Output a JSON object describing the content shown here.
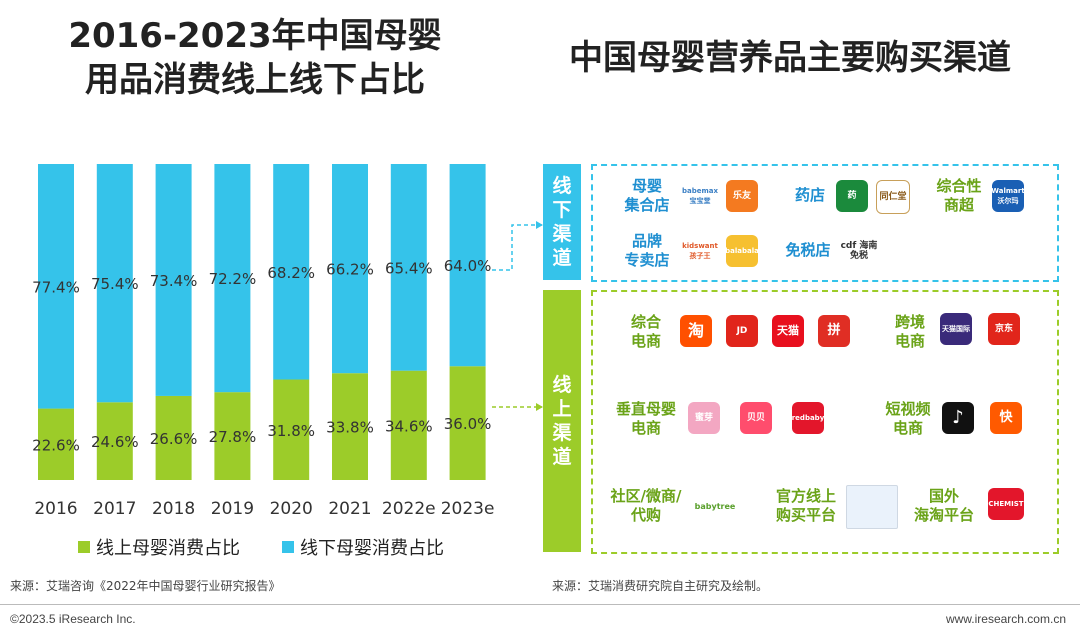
{
  "left_title_line1": "2016-2023年中国母婴",
  "left_title_line2": "用品消费线上线下占比",
  "right_title": "中国母婴营养品主要购买渠道",
  "colors": {
    "online": "#9ccc29",
    "offline": "#35c3ea",
    "offline_box": "#35c3ea",
    "online_box": "#9ccc29"
  },
  "chart_data": {
    "type": "bar",
    "stacked": true,
    "percent": true,
    "categories": [
      "2016",
      "2017",
      "2018",
      "2019",
      "2020",
      "2021",
      "2022e",
      "2023e"
    ],
    "series": [
      {
        "name": "线上母婴消费占比",
        "values": [
          22.6,
          24.6,
          26.6,
          27.8,
          31.8,
          33.8,
          34.6,
          36.0
        ],
        "labels": [
          "22.6%",
          "24.6%",
          "26.6%",
          "27.8%",
          "31.8%",
          "33.8%",
          "34.6%",
          "36.0%"
        ]
      },
      {
        "name": "线下母婴消费占比",
        "values": [
          77.4,
          75.4,
          73.4,
          72.2,
          68.2,
          66.2,
          65.4,
          64.0
        ],
        "labels": [
          "77.4%",
          "75.4%",
          "73.4%",
          "72.2%",
          "68.2%",
          "66.2%",
          "65.4%",
          "64.0%"
        ]
      }
    ],
    "ylim": [
      0,
      100
    ],
    "legend": "bottom"
  },
  "source_left": "来源：艾瑞咨询《2022年中国母婴行业研究报告》",
  "source_right": "来源：艾瑞消费研究院自主研究及绘制。",
  "footer_left": "©2023.5 iResearch Inc.",
  "footer_right": "www.iresearch.com.cn",
  "offline": {
    "label": [
      "线",
      "下",
      "渠",
      "道"
    ],
    "groups": [
      {
        "name": [
          "母婴",
          "集合店"
        ],
        "logos": [
          {
            "icon": "babemax-logo",
            "text": "babemax 宝宝堂",
            "color": "#ffffff"
          },
          {
            "icon": "leyou-logo",
            "text": "乐友",
            "color": "#f47a20"
          }
        ]
      },
      {
        "name": [
          "药店"
        ],
        "logos": [
          {
            "icon": "pharmacy-logo",
            "text": "药",
            "color": "#1b8a3c"
          },
          {
            "icon": "beijing-tongrentang-logo",
            "text": "同仁堂",
            "color": "#ffffff"
          }
        ]
      },
      {
        "name": [
          "综合性",
          "商超"
        ],
        "logos": [
          {
            "icon": "walmart-logo",
            "text": "Walmart 沃尔玛",
            "color": "#1a5fb4"
          }
        ]
      },
      {
        "name": [
          "品牌",
          "专卖店"
        ],
        "logos": [
          {
            "icon": "kidswant-logo",
            "text": "kidswant 孩子王",
            "color": "#ffffff"
          },
          {
            "icon": "balabala-logo",
            "text": "balabala",
            "color": "#f6c030"
          }
        ]
      },
      {
        "name": [
          "免税店"
        ],
        "logos": [
          {
            "icon": "cdf-logo",
            "text": "cdf 海南免税",
            "color": "#ffffff"
          }
        ]
      }
    ]
  },
  "online": {
    "label": [
      "线",
      "上",
      "渠",
      "道"
    ],
    "groups": [
      {
        "name": [
          "综合",
          "电商"
        ],
        "logos": [
          {
            "icon": "taobao-logo",
            "text": "淘",
            "color": "#ff5000"
          },
          {
            "icon": "jd-logo",
            "text": "JD",
            "color": "#e1251b"
          },
          {
            "icon": "tmall-logo",
            "text": "天猫",
            "color": "#e8101e"
          },
          {
            "icon": "pinduoduo-logo",
            "text": "拼",
            "color": "#e02e24"
          }
        ]
      },
      {
        "name": [
          "跨境",
          "电商"
        ],
        "logos": [
          {
            "icon": "tmall-global-logo",
            "text": "天猫国际",
            "color": "#3a2a7a"
          },
          {
            "icon": "jd-global-logo",
            "text": "京东",
            "color": "#e1251b"
          }
        ]
      },
      {
        "name": [
          "垂直母婴",
          "电商"
        ],
        "logos": [
          {
            "icon": "miya-logo",
            "text": "蜜芽",
            "color": "#f3a7c2"
          },
          {
            "icon": "beibei-logo",
            "text": "贝贝",
            "color": "#ff4d6d"
          },
          {
            "icon": "redbaby-logo",
            "text": "redbaby",
            "color": "#e3162b"
          }
        ]
      },
      {
        "name": [
          "短视频",
          "电商"
        ],
        "logos": [
          {
            "icon": "douyin-logo",
            "text": "♪",
            "color": "#111111"
          },
          {
            "icon": "kuaishou-logo",
            "text": "快",
            "color": "#ff5a00"
          }
        ]
      },
      {
        "name": [
          "社区/微商/",
          "代购"
        ],
        "logos": [
          {
            "icon": "babytree-logo",
            "text": "babytree",
            "color": "#ffffff"
          }
        ]
      },
      {
        "name": [
          "官方线上",
          "购买平台"
        ],
        "logos": [
          {
            "icon": "official-site-screenshot",
            "text": "",
            "color": "#eaf2fb"
          }
        ]
      },
      {
        "name": [
          "国外",
          "海淘平台"
        ],
        "logos": [
          {
            "icon": "chemist-warehouse-logo",
            "text": "CHEMIST",
            "color": "#e3162b"
          }
        ]
      }
    ]
  }
}
